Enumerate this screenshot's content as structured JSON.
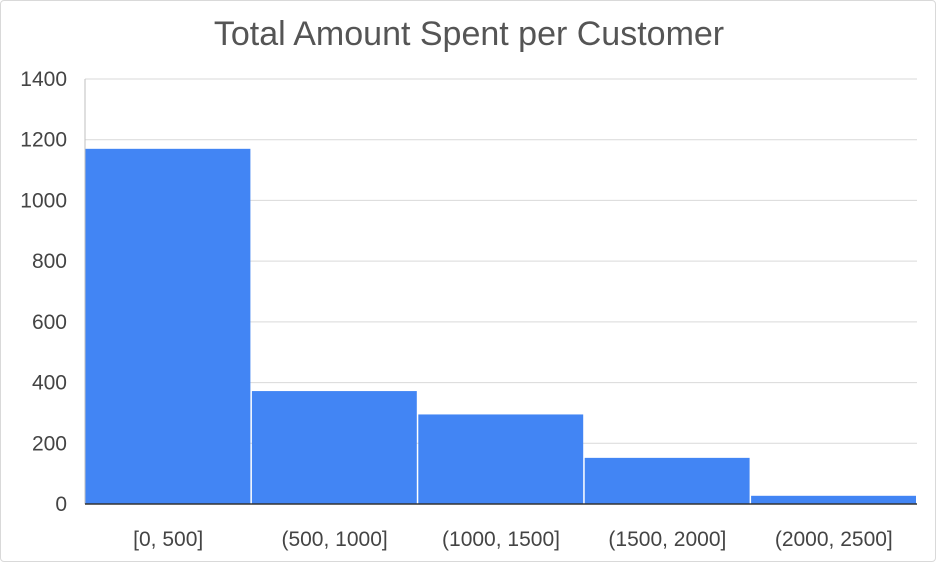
{
  "chart_data": {
    "type": "bar",
    "title": "Total Amount Spent per Customer",
    "xlabel": "",
    "ylabel": "",
    "categories": [
      "[0, 500]",
      "(500, 1000]",
      "(1000, 1500]",
      "(1500, 2000]",
      "(2000, 2500]"
    ],
    "values": [
      1170,
      372,
      295,
      152,
      27
    ],
    "ylim": [
      0,
      1400
    ],
    "yticks": [
      0,
      200,
      400,
      600,
      800,
      1000,
      1200,
      1400
    ],
    "grid": true,
    "legend": "none",
    "colors": {
      "bar": "#4285f4",
      "grid": "#d9d9d9",
      "axis": "#333333",
      "text": "#444444"
    }
  }
}
